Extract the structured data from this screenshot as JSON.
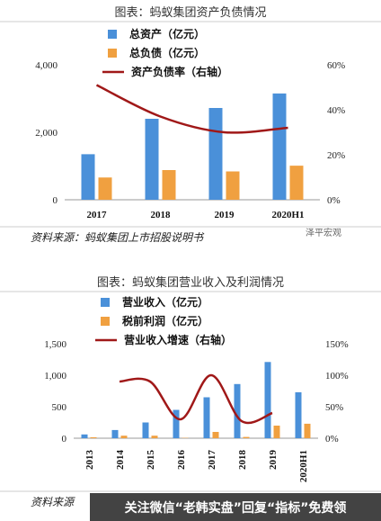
{
  "chart_data": [
    {
      "type": "bar",
      "title": "图表：蚂蚁集团资产负债情况",
      "categories": [
        "2017",
        "2018",
        "2019",
        "2020H1"
      ],
      "series": [
        {
          "name": "总资产（亿元）",
          "kind": "bar",
          "axis": "left",
          "color": "#4a90d9",
          "values": [
            1350,
            2400,
            2720,
            3150
          ]
        },
        {
          "name": "总负债（亿元）",
          "kind": "bar",
          "axis": "left",
          "color": "#f0a040",
          "values": [
            660,
            880,
            840,
            1010
          ]
        },
        {
          "name": "资产负债率（右轴）",
          "kind": "line",
          "axis": "right",
          "color": "#a01818",
          "values": [
            0.51,
            0.37,
            0.3,
            0.32
          ]
        }
      ],
      "left_axis": {
        "min": 0,
        "max": 4000,
        "ticks": [
          "0",
          "2,000",
          "4,000"
        ],
        "tick_values": [
          0,
          2000,
          4000
        ]
      },
      "right_axis": {
        "min": 0,
        "max": 0.6,
        "ticks": [
          "0%",
          "20%",
          "40%",
          "60%"
        ],
        "tick_values": [
          0,
          0.2,
          0.4,
          0.6
        ]
      },
      "source": "资料来源：蚂蚁集团上市招股说明书",
      "legend_position": "top"
    },
    {
      "type": "bar",
      "title": "图表：蚂蚁集团营业收入及利润情况",
      "categories": [
        "2013",
        "2014",
        "2015",
        "2016",
        "2017",
        "2018",
        "2019",
        "2020H1"
      ],
      "series": [
        {
          "name": "营业收入（亿元）",
          "kind": "bar",
          "axis": "left",
          "color": "#4a90d9",
          "values": [
            60,
            130,
            250,
            450,
            650,
            860,
            1210,
            730
          ]
        },
        {
          "name": "税前利润（亿元）",
          "kind": "bar",
          "axis": "left",
          "color": "#f0a040",
          "values": [
            15,
            40,
            40,
            5,
            100,
            20,
            200,
            230
          ]
        },
        {
          "name": "营业收入增速（右轴）",
          "kind": "line",
          "axis": "right",
          "color": "#a01818",
          "values": [
            null,
            0.9,
            0.9,
            0.3,
            1.0,
            0.27,
            0.4,
            null
          ]
        }
      ],
      "left_axis": {
        "min": 0,
        "max": 1500,
        "ticks": [
          "0",
          "500",
          "1,000",
          "1,500"
        ],
        "tick_values": [
          0,
          500,
          1000,
          1500
        ]
      },
      "right_axis": {
        "min": 0,
        "max": 1.5,
        "ticks": [
          "0%",
          "50%",
          "100%",
          "150%"
        ],
        "tick_values": [
          0,
          0.5,
          1.0,
          1.5
        ]
      },
      "source": "资料来源",
      "legend_position": "top"
    }
  ],
  "watermark": "泽平宏观",
  "banner": {
    "text": "关注微信“老韩实盘”回复“指标”免费领"
  }
}
